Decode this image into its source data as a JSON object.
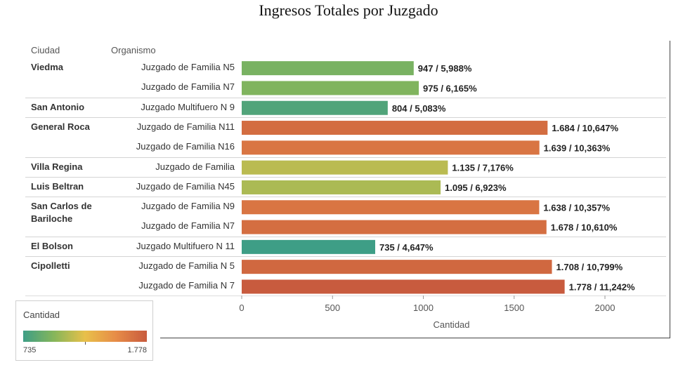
{
  "chart_data": {
    "type": "bar",
    "title": "Ingresos Totales por Juzgado",
    "column_headers": {
      "city": "Ciudad",
      "organism": "Organismo"
    },
    "xlabel": "Cantidad",
    "xlim": [
      0,
      2150
    ],
    "xticks": [
      0,
      500,
      1000,
      1500,
      2000
    ],
    "xtick_labels": [
      "0",
      "500",
      "1000",
      "1500",
      "2000"
    ],
    "groups": [
      {
        "city": "Viedma",
        "rows": [
          {
            "organismo": "Juzgado de Familia N5",
            "value": 947,
            "label": "947 / 5,988%"
          },
          {
            "organismo": "Juzgado de Familia N7",
            "value": 975,
            "label": "975 / 6,165%"
          }
        ]
      },
      {
        "city": "San Antonio",
        "rows": [
          {
            "organismo": "Juzgado Multifuero N 9",
            "value": 804,
            "label": "804 / 5,083%"
          }
        ]
      },
      {
        "city": "General Roca",
        "rows": [
          {
            "organismo": "Juzgado de Familia N11",
            "value": 1684,
            "label": "1.684 / 10,647%"
          },
          {
            "organismo": "Juzgado de Familia N16",
            "value": 1639,
            "label": "1.639 / 10,363%"
          }
        ]
      },
      {
        "city": "Villa Regina",
        "rows": [
          {
            "organismo": "Juzgado de Familia",
            "value": 1135,
            "label": "1.135 / 7,176%"
          }
        ]
      },
      {
        "city": "Luis Beltran",
        "rows": [
          {
            "organismo": "Juzgado de Familia N45",
            "value": 1095,
            "label": "1.095 / 6,923%"
          }
        ]
      },
      {
        "city": "San Carlos de Bariloche",
        "rows": [
          {
            "organismo": "Juzgado de Familia N9",
            "value": 1638,
            "label": "1.638 / 10,357%"
          },
          {
            "organismo": "Juzgado de Familia N7",
            "value": 1678,
            "label": "1.678 / 10,610%"
          }
        ]
      },
      {
        "city": "El Bolson",
        "rows": [
          {
            "organismo": "Juzgado Multifuero N 11",
            "value": 735,
            "label": "735 / 4,647%"
          }
        ]
      },
      {
        "city": "Cipolletti",
        "rows": [
          {
            "organismo": "Juzgado de Familia N 5",
            "value": 1708,
            "label": "1.708 / 10,799%"
          },
          {
            "organismo": "Juzgado de Familia N 7",
            "value": 1778,
            "label": "1.778 / 11,242%"
          }
        ]
      }
    ],
    "legend": {
      "title": "Cantidad",
      "min_label": "735",
      "max_label": "1.778",
      "min": 735,
      "max": 1778,
      "placement": "bottom-left",
      "colors": [
        "#3e9e86",
        "#86b65a",
        "#e8c04a",
        "#e78c47",
        "#c85b3e"
      ]
    },
    "grid": false
  }
}
